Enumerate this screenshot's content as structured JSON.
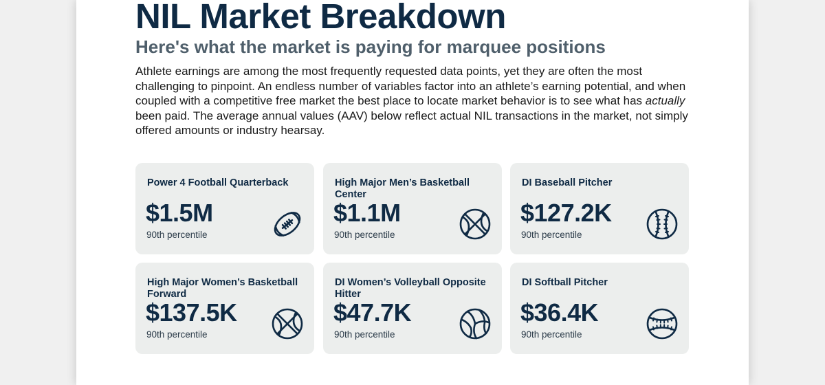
{
  "header": {
    "title": "NIL Market Breakdown",
    "subtitle": "Here's what the market is paying for marquee positions"
  },
  "intro": {
    "before_emphasis": "Athlete earnings are among the most frequently requested data points, yet they are often the most challenging to pinpoint. An endless number of variables factor into an athlete’s earning potential, and when coupled with a competitive free market the best place to locate market behavior is to see what has ",
    "emphasis": "actually",
    "after_emphasis": " been paid. The average annual values (AAV) below reflect actual NIL transactions in the market, not simply offered amounts or industry hearsay."
  },
  "cards": [
    {
      "title": "Power 4 Football Quarterback",
      "value": "$1.5M",
      "note": "90th percentile",
      "icon": "football-icon"
    },
    {
      "title": "High Major Men’s Basketball Center",
      "value": "$1.1M",
      "note": "90th percentile",
      "icon": "basketball-icon"
    },
    {
      "title": "DI Baseball Pitcher",
      "value": "$127.2K",
      "note": "90th percentile",
      "icon": "baseball-icon"
    },
    {
      "title": "High Major Women’s Basketball Forward",
      "value": "$137.5K",
      "note": "90th percentile",
      "icon": "basketball-icon"
    },
    {
      "title": "DI Women’s Volleyball Opposite Hitter",
      "value": "$47.7K",
      "note": "90th percentile",
      "icon": "volleyball-icon"
    },
    {
      "title": "DI Softball Pitcher",
      "value": "$36.4K",
      "note": "90th percentile",
      "icon": "softball-icon"
    }
  ],
  "colors": {
    "navy": "#0f2a44",
    "slate": "#4f5f6b",
    "card_bg": "#eceeed"
  }
}
